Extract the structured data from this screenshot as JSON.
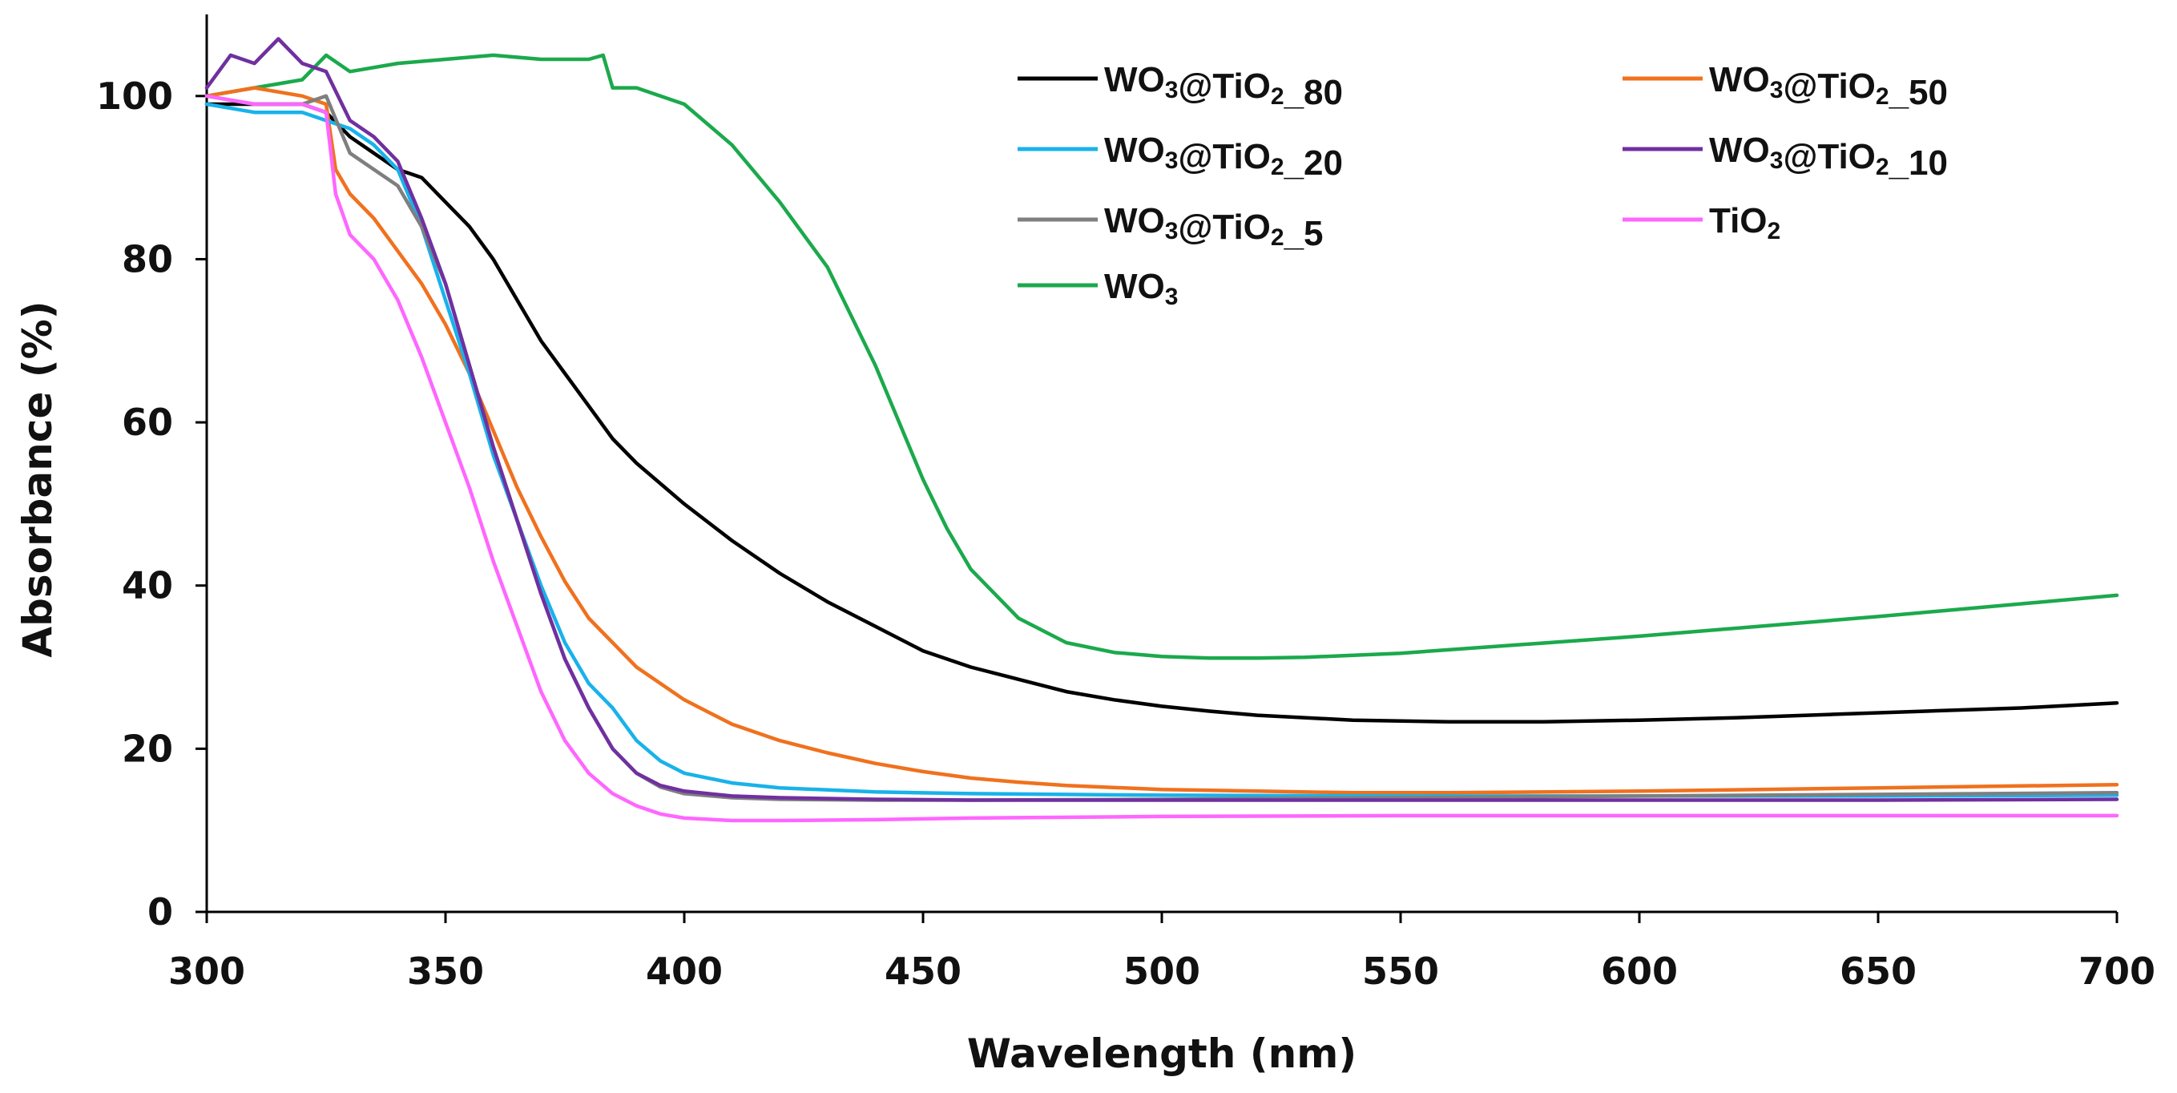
{
  "chart_data": {
    "type": "line",
    "title": "",
    "xlabel": "Wavelength (nm)",
    "ylabel": "Absorbance (%)",
    "xlim": [
      300,
      700
    ],
    "ylim": [
      0,
      110
    ],
    "xticks": [
      300,
      350,
      400,
      450,
      500,
      550,
      600,
      650,
      700
    ],
    "yticks": [
      0,
      20,
      40,
      60,
      80,
      100
    ],
    "xtick_labels": [
      "300",
      "350",
      "400",
      "450",
      "500",
      "550",
      "600",
      "650",
      "700"
    ],
    "ytick_labels": [
      "0",
      "20",
      "40",
      "60",
      "80",
      "100"
    ],
    "grid": false,
    "legend_position": "top-right",
    "series": [
      {
        "name": "WO3@TiO2_80",
        "label_main": "WO",
        "label_sub1": "3",
        "label_mid": "@TiO",
        "label_sub2": "2",
        "label_tail": "_80",
        "color": "#000000",
        "x": [
          300,
          310,
          320,
          325,
          330,
          335,
          340,
          345,
          350,
          355,
          360,
          365,
          370,
          375,
          380,
          385,
          390,
          400,
          410,
          420,
          430,
          440,
          450,
          460,
          470,
          480,
          490,
          500,
          510,
          520,
          540,
          560,
          580,
          600,
          620,
          640,
          660,
          680,
          700
        ],
        "y": [
          99,
          99,
          99,
          98,
          95,
          93,
          91,
          90,
          87,
          84,
          80,
          75,
          70,
          66,
          62,
          58,
          55,
          50,
          45.5,
          41.5,
          38,
          35,
          32,
          30,
          28.5,
          27,
          26,
          25.2,
          24.6,
          24.1,
          23.5,
          23.3,
          23.3,
          23.5,
          23.8,
          24.2,
          24.6,
          25,
          25.6
        ]
      },
      {
        "name": "WO3@TiO2_50",
        "label_main": "WO",
        "label_sub1": "3",
        "label_mid": "@TiO",
        "label_sub2": "2",
        "label_tail": "_50",
        "color": "#F0711E",
        "x": [
          300,
          310,
          320,
          325,
          327,
          330,
          335,
          340,
          345,
          350,
          355,
          360,
          365,
          370,
          375,
          380,
          390,
          400,
          410,
          420,
          430,
          440,
          450,
          460,
          470,
          480,
          500,
          520,
          540,
          560,
          600,
          650,
          700
        ],
        "y": [
          100,
          101,
          100,
          99,
          91,
          88,
          85,
          81,
          77,
          72,
          66,
          59,
          52,
          46,
          40.5,
          36,
          30,
          26,
          23,
          21,
          19.5,
          18.2,
          17.2,
          16.4,
          15.9,
          15.5,
          15,
          14.8,
          14.6,
          14.6,
          14.8,
          15.2,
          15.6
        ]
      },
      {
        "name": "WO3@TiO2_20",
        "label_main": "WO",
        "label_sub1": "3",
        "label_mid": "@TiO",
        "label_sub2": "2",
        "label_tail": "_20",
        "color": "#19B2EA",
        "x": [
          300,
          310,
          320,
          325,
          330,
          335,
          340,
          345,
          350,
          355,
          360,
          365,
          370,
          375,
          380,
          385,
          390,
          395,
          400,
          410,
          420,
          440,
          460,
          500,
          550,
          600,
          650,
          700
        ],
        "y": [
          99,
          98,
          98,
          97,
          96,
          94,
          91,
          84,
          75,
          66,
          56,
          48,
          40,
          33,
          28,
          25,
          21,
          18.5,
          17,
          15.8,
          15.2,
          14.7,
          14.5,
          14.3,
          14.2,
          14.2,
          14.2,
          14.3
        ]
      },
      {
        "name": "WO3@TiO2_10",
        "label_main": "WO",
        "label_sub1": "3",
        "label_mid": "@TiO",
        "label_sub2": "2",
        "label_tail": "_10",
        "color": "#7030A0",
        "x": [
          300,
          305,
          310,
          315,
          320,
          325,
          330,
          335,
          340,
          345,
          350,
          355,
          360,
          365,
          370,
          375,
          380,
          385,
          390,
          395,
          400,
          410,
          420,
          440,
          460,
          500,
          550,
          600,
          650,
          700
        ],
        "y": [
          101,
          105,
          104,
          107,
          104,
          103,
          97,
          95,
          92,
          85,
          77,
          67,
          57,
          48,
          39,
          31,
          25,
          20,
          17,
          15.5,
          14.8,
          14.2,
          14,
          13.8,
          13.7,
          13.7,
          13.7,
          13.7,
          13.7,
          13.8
        ]
      },
      {
        "name": "WO3@TiO2_5",
        "label_main": "WO",
        "label_sub1": "3",
        "label_mid": "@TiO",
        "label_sub2": "2",
        "label_tail": "_5",
        "color": "#7F7F7F",
        "x": [
          300,
          310,
          320,
          325,
          330,
          335,
          340,
          345,
          350,
          355,
          360,
          365,
          370,
          375,
          380,
          385,
          390,
          395,
          400,
          410,
          420,
          440,
          460,
          500,
          550,
          600,
          650,
          700
        ],
        "y": [
          100,
          99,
          99,
          100,
          93,
          91,
          89,
          84,
          77,
          67,
          57,
          48,
          39,
          31,
          25,
          20,
          17,
          15.3,
          14.5,
          14,
          13.8,
          13.7,
          13.7,
          13.8,
          14,
          14.2,
          14.4,
          14.6
        ]
      },
      {
        "name": "TiO2",
        "label_main": "TiO",
        "label_sub1": "2",
        "label_mid": "",
        "label_sub2": "",
        "label_tail": "",
        "color": "#FF66FF",
        "x": [
          300,
          310,
          320,
          325,
          327,
          330,
          335,
          340,
          345,
          350,
          355,
          360,
          365,
          370,
          375,
          380,
          385,
          390,
          395,
          400,
          410,
          420,
          440,
          460,
          500,
          550,
          600,
          650,
          700
        ],
        "y": [
          100,
          99,
          99,
          98,
          88,
          83,
          80,
          75,
          68,
          60,
          52,
          43,
          35,
          27,
          21,
          17,
          14.5,
          13,
          12,
          11.5,
          11.2,
          11.2,
          11.3,
          11.5,
          11.7,
          11.8,
          11.8,
          11.8,
          11.8
        ]
      },
      {
        "name": "WO3",
        "label_main": "WO",
        "label_sub1": "3",
        "label_mid": "",
        "label_sub2": "",
        "label_tail": "",
        "color": "#1BA94C",
        "x": [
          300,
          310,
          320,
          325,
          330,
          340,
          350,
          360,
          370,
          380,
          383,
          385,
          390,
          400,
          410,
          420,
          430,
          440,
          445,
          450,
          455,
          460,
          470,
          480,
          490,
          500,
          510,
          520,
          530,
          550,
          600,
          650,
          700
        ],
        "y": [
          100,
          101,
          102,
          105,
          103,
          104,
          104.5,
          105,
          104.5,
          104.5,
          105,
          101,
          101,
          99,
          94,
          87,
          79,
          67,
          60,
          53,
          47,
          42,
          36,
          33,
          31.8,
          31.3,
          31.1,
          31.1,
          31.2,
          31.7,
          33.8,
          36.2,
          38.8
        ]
      }
    ]
  }
}
